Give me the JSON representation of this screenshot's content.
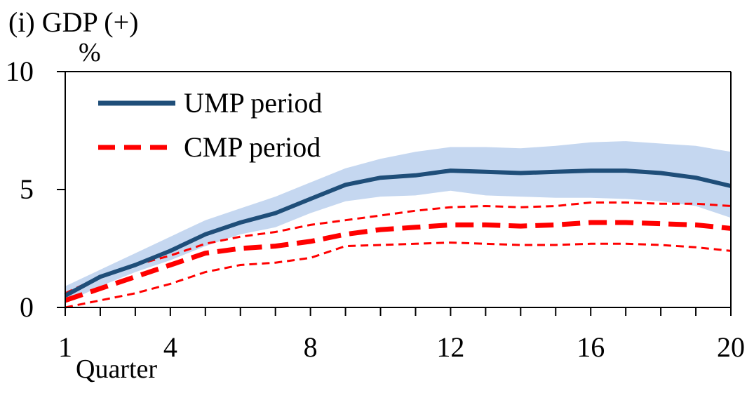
{
  "chart_data": {
    "type": "line",
    "title": "(i) GDP (+)",
    "y_unit": "%",
    "xlabel": "Quarter",
    "ylabel": "",
    "xlim": [
      1,
      20
    ],
    "ylim": [
      0,
      10
    ],
    "x_ticks": [
      1,
      4,
      8,
      12,
      16,
      20
    ],
    "y_ticks": [
      0,
      5,
      10
    ],
    "grid": false,
    "legend_position": "top-left",
    "x": [
      1,
      2,
      3,
      4,
      5,
      6,
      7,
      8,
      9,
      10,
      11,
      12,
      13,
      14,
      15,
      16,
      17,
      18,
      19,
      20
    ],
    "series": [
      {
        "name": "UMP period",
        "color": "#1f4e79",
        "band_color": "#c5d7f0",
        "style": "solid",
        "values": [
          0.5,
          1.3,
          1.8,
          2.4,
          3.1,
          3.6,
          4.0,
          4.6,
          5.2,
          5.5,
          5.6,
          5.8,
          5.75,
          5.7,
          5.75,
          5.8,
          5.8,
          5.7,
          5.5,
          5.15
        ],
        "upper": [
          0.9,
          1.6,
          2.3,
          3.0,
          3.7,
          4.2,
          4.7,
          5.3,
          5.9,
          6.3,
          6.6,
          6.8,
          6.8,
          6.75,
          6.85,
          7.0,
          7.05,
          6.95,
          6.85,
          6.6
        ],
        "lower": [
          0.2,
          0.9,
          1.5,
          2.0,
          2.6,
          3.1,
          3.4,
          4.0,
          4.5,
          4.7,
          4.75,
          4.95,
          4.75,
          4.7,
          4.65,
          4.65,
          4.6,
          4.5,
          4.3,
          3.8
        ]
      },
      {
        "name": "CMP period",
        "color": "#ff0000",
        "style": "dashed",
        "values": [
          0.3,
          0.8,
          1.3,
          1.8,
          2.3,
          2.5,
          2.6,
          2.8,
          3.1,
          3.3,
          3.4,
          3.5,
          3.5,
          3.45,
          3.5,
          3.6,
          3.6,
          3.55,
          3.5,
          3.35
        ],
        "upper": [
          0.6,
          1.3,
          1.8,
          2.2,
          2.7,
          3.0,
          3.2,
          3.5,
          3.7,
          3.9,
          4.1,
          4.25,
          4.3,
          4.25,
          4.3,
          4.45,
          4.45,
          4.4,
          4.4,
          4.3
        ],
        "lower": [
          0.0,
          0.3,
          0.6,
          1.0,
          1.5,
          1.8,
          1.9,
          2.1,
          2.6,
          2.65,
          2.7,
          2.75,
          2.7,
          2.65,
          2.65,
          2.7,
          2.7,
          2.65,
          2.55,
          2.4
        ]
      }
    ]
  }
}
